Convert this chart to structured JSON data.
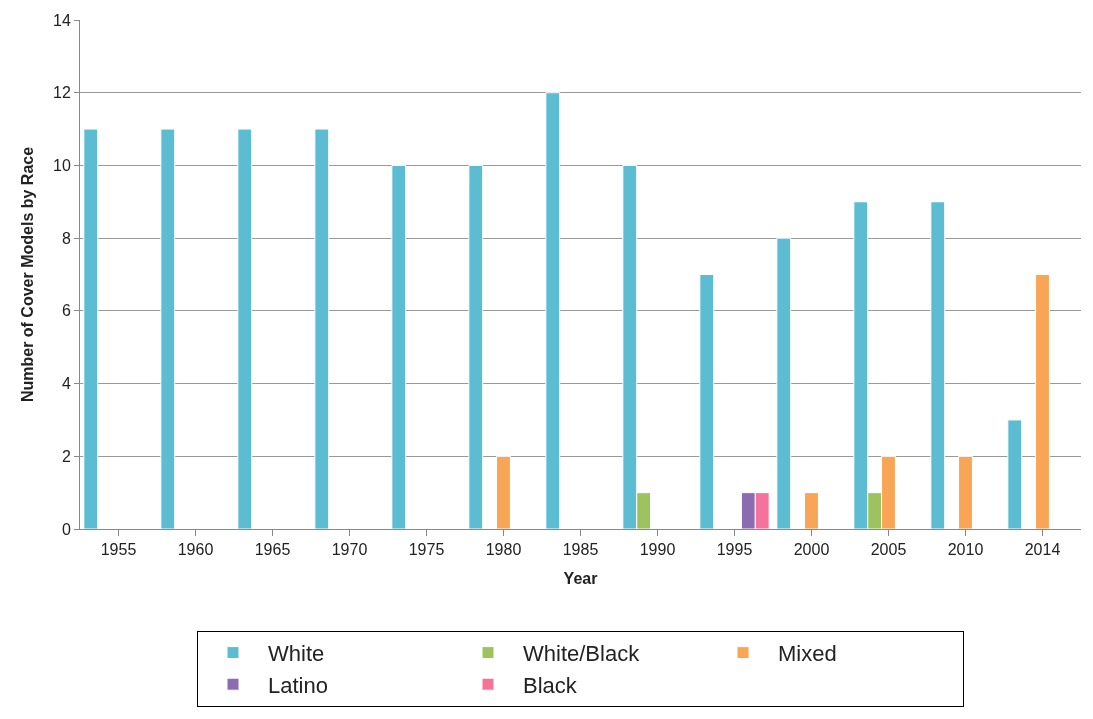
{
  "chart_data": {
    "type": "bar",
    "xlabel": "Year",
    "ylabel": "Number of Cover Models by Race",
    "categories": [
      "1955",
      "1960",
      "1965",
      "1970",
      "1975",
      "1980",
      "1985",
      "1990",
      "1995",
      "2000",
      "2005",
      "2010",
      "2014"
    ],
    "series": [
      {
        "name": "White",
        "color": "#5bbcd2",
        "values": [
          11,
          11,
          11,
          11,
          10,
          10,
          12,
          10,
          7,
          8,
          9,
          9,
          3
        ]
      },
      {
        "name": "White/Black",
        "color": "#9cc35f",
        "values": [
          null,
          null,
          null,
          null,
          null,
          null,
          null,
          1,
          null,
          null,
          1,
          null,
          null
        ]
      },
      {
        "name": "Mixed",
        "color": "#f8a655",
        "values": [
          null,
          null,
          null,
          null,
          null,
          2,
          null,
          null,
          null,
          1,
          2,
          2,
          7
        ]
      },
      {
        "name": "Latino",
        "color": "#8d6bb0",
        "values": [
          null,
          null,
          null,
          null,
          null,
          null,
          null,
          null,
          1,
          null,
          null,
          null,
          null
        ]
      },
      {
        "name": "Black",
        "color": "#f5739a",
        "values": [
          null,
          null,
          null,
          null,
          null,
          null,
          null,
          null,
          1,
          null,
          null,
          null,
          null
        ]
      }
    ],
    "ylim": [
      0,
      14
    ],
    "yticks": [
      0,
      2,
      4,
      6,
      8,
      10,
      12,
      14
    ],
    "grid": "y",
    "legend": "bottom"
  }
}
